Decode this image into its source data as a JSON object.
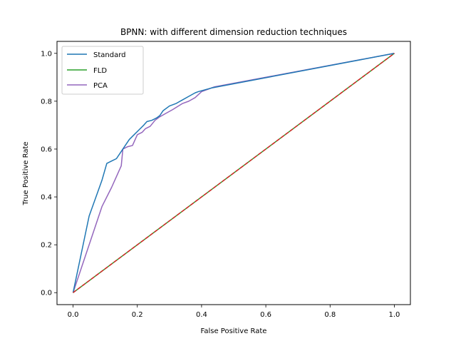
{
  "chart_data": {
    "type": "line",
    "title": "BPNN: with different dimension reduction techniques",
    "xlabel": "False Positive Rate",
    "ylabel": "True Positive Rate",
    "xlim": [
      -0.05,
      1.05
    ],
    "ylim": [
      -0.05,
      1.05
    ],
    "xticks": [
      0.0,
      0.2,
      0.4,
      0.6,
      0.8,
      1.0
    ],
    "yticks": [
      0.0,
      0.2,
      0.4,
      0.6,
      0.8,
      1.0
    ],
    "xtick_labels": [
      "0.0",
      "0.2",
      "0.4",
      "0.6",
      "0.8",
      "1.0"
    ],
    "ytick_labels": [
      "0.0",
      "0.2",
      "0.4",
      "0.6",
      "0.8",
      "1.0"
    ],
    "grid": false,
    "legend_position": "top-left",
    "series": [
      {
        "name": "Standard",
        "color": "#1f77b4",
        "x": [
          0.0,
          0.05,
          0.09,
          0.105,
          0.12,
          0.135,
          0.15,
          0.16,
          0.175,
          0.19,
          0.205,
          0.22,
          0.23,
          0.245,
          0.26,
          0.27,
          0.28,
          0.3,
          0.32,
          0.34,
          0.36,
          0.38,
          0.39,
          0.43,
          1.0
        ],
        "y": [
          0.0,
          0.32,
          0.47,
          0.54,
          0.55,
          0.56,
          0.59,
          0.61,
          0.64,
          0.66,
          0.68,
          0.7,
          0.715,
          0.72,
          0.73,
          0.74,
          0.76,
          0.78,
          0.79,
          0.805,
          0.82,
          0.835,
          0.84,
          0.855,
          1.0
        ]
      },
      {
        "name": "FLD",
        "color": "#2ca02c",
        "x": [
          0.0,
          1.0
        ],
        "y": [
          0.0,
          1.0
        ]
      },
      {
        "name": "PCA",
        "color": "#9467bd",
        "x": [
          0.0,
          0.09,
          0.12,
          0.15,
          0.155,
          0.17,
          0.185,
          0.2,
          0.215,
          0.225,
          0.24,
          0.255,
          0.27,
          0.29,
          0.31,
          0.34,
          0.36,
          0.38,
          0.4,
          0.44,
          1.0
        ],
        "y": [
          0.0,
          0.36,
          0.44,
          0.53,
          0.6,
          0.61,
          0.615,
          0.66,
          0.67,
          0.685,
          0.695,
          0.72,
          0.735,
          0.75,
          0.765,
          0.79,
          0.8,
          0.815,
          0.84,
          0.86,
          1.0
        ]
      },
      {
        "name": "",
        "color": "#d62728",
        "dash": true,
        "x": [
          0.0,
          1.0
        ],
        "y": [
          0.0,
          1.0
        ]
      }
    ]
  }
}
